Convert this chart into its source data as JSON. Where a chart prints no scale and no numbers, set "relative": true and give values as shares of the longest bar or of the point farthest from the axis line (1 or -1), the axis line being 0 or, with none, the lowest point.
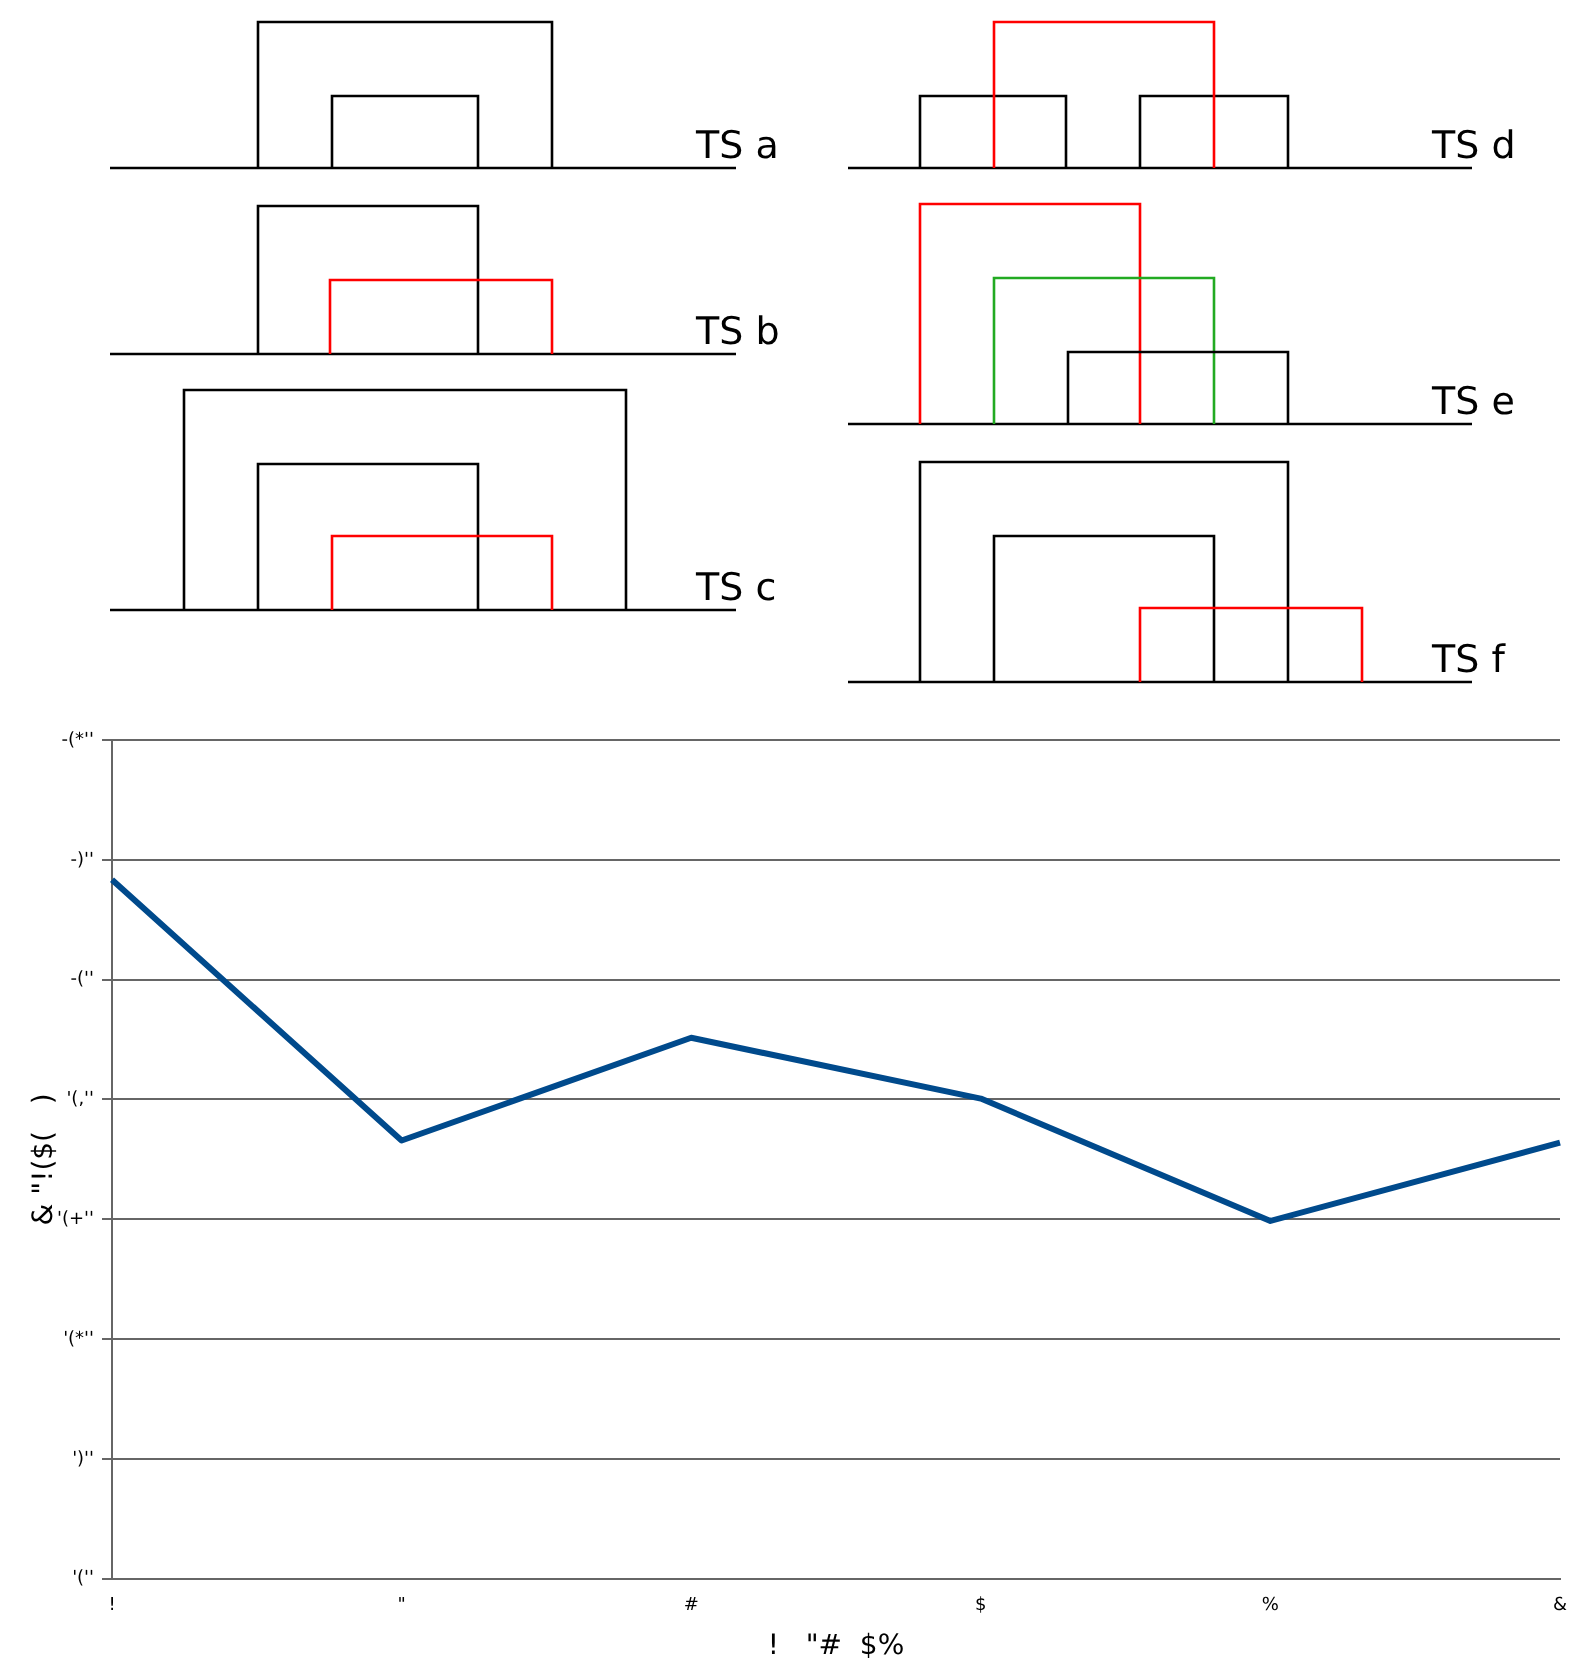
{
  "chart_data": {
    "type": "line",
    "relative": true,
    "xlabel": "!   \"#  $%",
    "ylabel": "& \"!($(   )",
    "categories": [
      "!",
      "\"",
      "#",
      "$",
      "%",
      "&"
    ],
    "series": [
      {
        "color": "#004a8c",
        "values": [
          1,
          0.627,
          0.774,
          0.687,
          0.512,
          0.624
        ]
      }
    ],
    "grid": "y",
    "legend": false,
    "marker": "none",
    "line_style": "solid",
    "annotations": [
      "TS a",
      "TS b",
      "TS c",
      "TS d",
      "TS e",
      "TS f",
      "'(''",
      "')''",
      "'(*''",
      "'(+''",
      "'(,''",
      "-(''",
      "-)''",
      "-(*''"
    ]
  }
}
